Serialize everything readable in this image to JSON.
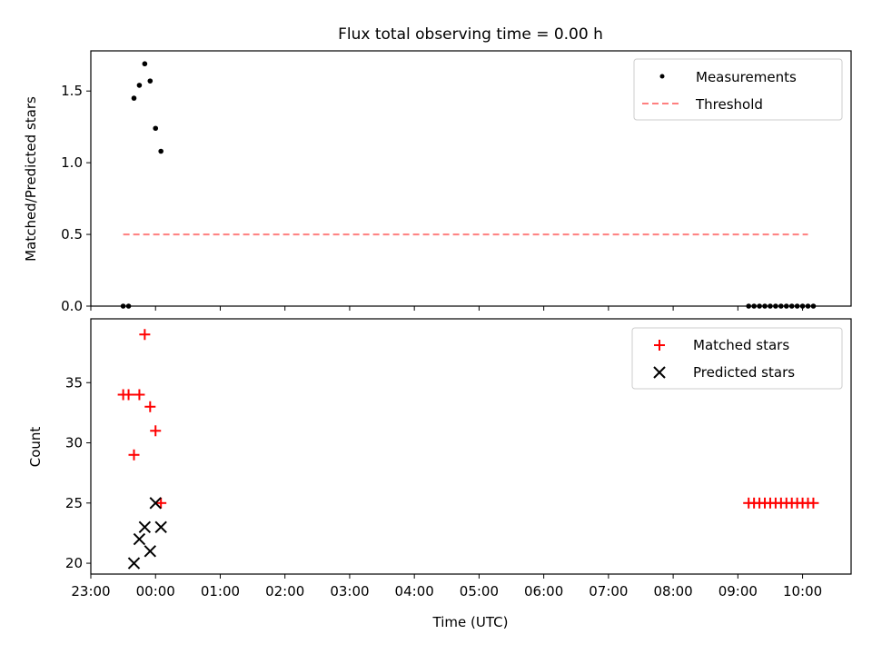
{
  "title": "Flux total observing time = 0.00 h",
  "colors": {
    "measurement": "#000000",
    "threshold": "#ff7f7f",
    "matched": "#ff0000",
    "predicted": "#000000"
  },
  "chart_data": [
    {
      "type": "scatter",
      "ylabel": "Matched/Predicted stars",
      "xlim": [
        "23:00",
        "10:45"
      ],
      "ylim": [
        0.0,
        1.78
      ],
      "yticks": [
        "0.0",
        "0.5",
        "1.0",
        "1.5"
      ],
      "legend": {
        "placement": "top-right",
        "entries": [
          "Measurements",
          "Threshold"
        ]
      },
      "series": [
        {
          "name": "Measurements",
          "x": [
            "23:30",
            "23:35",
            "23:40",
            "23:45",
            "23:50",
            "23:55",
            "00:00",
            "00:05",
            "09:10",
            "09:15",
            "09:20",
            "09:25",
            "09:30",
            "09:35",
            "09:40",
            "09:45",
            "09:50",
            "09:55",
            "10:00",
            "10:05",
            "10:10"
          ],
          "values": [
            0,
            0,
            1.45,
            1.54,
            1.69,
            1.57,
            1.24,
            1.08,
            0,
            0,
            0,
            0,
            0,
            0,
            0,
            0,
            0,
            0,
            0,
            0,
            0
          ]
        },
        {
          "name": "Threshold",
          "x": [
            "23:30",
            "10:05"
          ],
          "values": [
            0.5,
            0.5
          ]
        }
      ]
    },
    {
      "type": "scatter",
      "xlabel": "Time (UTC)",
      "ylabel": "Count",
      "xlim": [
        "23:00",
        "10:45"
      ],
      "ylim": [
        19.1,
        40.3
      ],
      "yticks": [
        "20",
        "25",
        "30",
        "35"
      ],
      "xticks": [
        "23:00",
        "00:00",
        "01:00",
        "02:00",
        "03:00",
        "04:00",
        "05:00",
        "06:00",
        "07:00",
        "08:00",
        "09:00",
        "10:00"
      ],
      "legend": {
        "placement": "top-right",
        "entries": [
          "Matched stars",
          "Predicted stars"
        ]
      },
      "series": [
        {
          "name": "Matched stars",
          "x": [
            "23:30",
            "23:35",
            "23:40",
            "23:45",
            "23:50",
            "23:55",
            "00:00",
            "00:05",
            "09:10",
            "09:15",
            "09:20",
            "09:25",
            "09:30",
            "09:35",
            "09:40",
            "09:45",
            "09:50",
            "09:55",
            "10:00",
            "10:05",
            "10:10"
          ],
          "values": [
            34,
            34,
            29,
            34,
            39,
            33,
            31,
            25,
            25,
            25,
            25,
            25,
            25,
            25,
            25,
            25,
            25,
            25,
            25,
            25,
            25
          ]
        },
        {
          "name": "Predicted stars",
          "x": [
            "23:40",
            "23:45",
            "23:50",
            "23:55",
            "00:00",
            "00:05"
          ],
          "values": [
            20,
            22,
            23,
            21,
            25,
            23
          ]
        }
      ]
    }
  ]
}
